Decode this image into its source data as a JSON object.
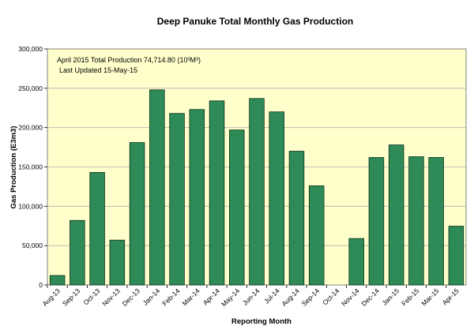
{
  "chart_data": {
    "type": "bar",
    "title": "Deep Panuke Total Monthly Gas Production",
    "xlabel": "Reporting Month",
    "ylabel": "Gas Production (E3m3)",
    "ylim": [
      0,
      300000
    ],
    "yticks": [
      0,
      50000,
      100000,
      150000,
      200000,
      250000,
      300000
    ],
    "ytick_labels": [
      "0",
      "50,000",
      "100,000",
      "150,000",
      "200,000",
      "250,000",
      "300,000"
    ],
    "grid": true,
    "bar_color": "#2e8b57",
    "plot_background": "#ffffcc",
    "annotations": [
      "April 2015 Total Production 74,714.80 (10³M³)",
      "Last Updated 15-May-15"
    ],
    "categories": [
      "Aug-13",
      "Sep-13",
      "Oct-13",
      "Nov-13",
      "Dec-13",
      "Jan-14",
      "Feb-14",
      "Mar-14",
      "Apr-14",
      "May-14",
      "Jun-14",
      "Jul-14",
      "Aug-14",
      "Sep-14",
      "Oct-14",
      "Nov-14",
      "Dec-14",
      "Jan-15",
      "Feb-15",
      "Mar-15",
      "Apr-15"
    ],
    "values": [
      12000,
      82000,
      143000,
      57000,
      181000,
      248000,
      218000,
      223000,
      234000,
      197000,
      237000,
      220000,
      170000,
      126000,
      0,
      59000,
      162000,
      178000,
      163000,
      162000,
      74715
    ]
  }
}
